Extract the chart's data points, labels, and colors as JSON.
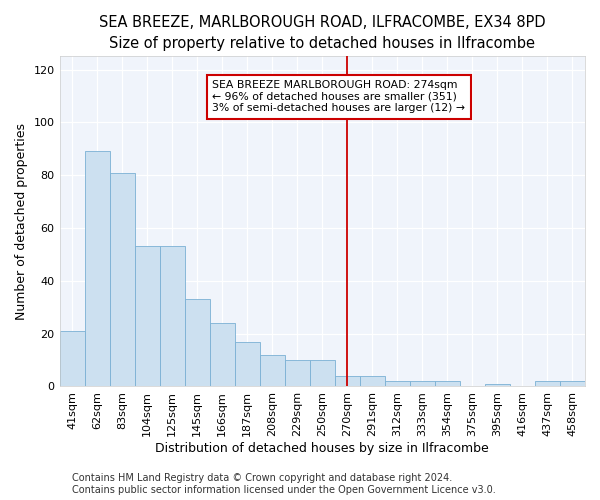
{
  "title1": "SEA BREEZE, MARLBOROUGH ROAD, ILFRACOMBE, EX34 8PD",
  "title2": "Size of property relative to detached houses in Ilfracombe",
  "xlabel": "Distribution of detached houses by size in Ilfracombe",
  "ylabel": "Number of detached properties",
  "footer1": "Contains HM Land Registry data © Crown copyright and database right 2024.",
  "footer2": "Contains public sector information licensed under the Open Government Licence v3.0.",
  "categories": [
    "41sqm",
    "62sqm",
    "83sqm",
    "104sqm",
    "125sqm",
    "145sqm",
    "166sqm",
    "187sqm",
    "208sqm",
    "229sqm",
    "250sqm",
    "270sqm",
    "291sqm",
    "312sqm",
    "333sqm",
    "354sqm",
    "375sqm",
    "395sqm",
    "416sqm",
    "437sqm",
    "458sqm"
  ],
  "values": [
    21,
    89,
    81,
    53,
    53,
    33,
    24,
    17,
    12,
    10,
    10,
    4,
    4,
    2,
    2,
    2,
    0,
    1,
    0,
    2,
    2
  ],
  "bar_color": "#cce0f0",
  "bar_edge_color": "#7ab0d4",
  "vline_index": 11,
  "vline_color": "#cc0000",
  "annotation_text": "SEA BREEZE MARLBOROUGH ROAD: 274sqm\n← 96% of detached houses are smaller (351)\n3% of semi-detached houses are larger (12) →",
  "annotation_box_color": "white",
  "annotation_edge_color": "#cc0000",
  "ylim": [
    0,
    125
  ],
  "yticks": [
    0,
    20,
    40,
    60,
    80,
    100,
    120
  ],
  "bg_color": "#ffffff",
  "plot_bg_color": "#f0f4fb",
  "grid_color": "#ffffff",
  "title_fontsize": 10.5,
  "subtitle_fontsize": 9.5,
  "axis_label_fontsize": 9,
  "tick_fontsize": 8,
  "footer_fontsize": 7
}
